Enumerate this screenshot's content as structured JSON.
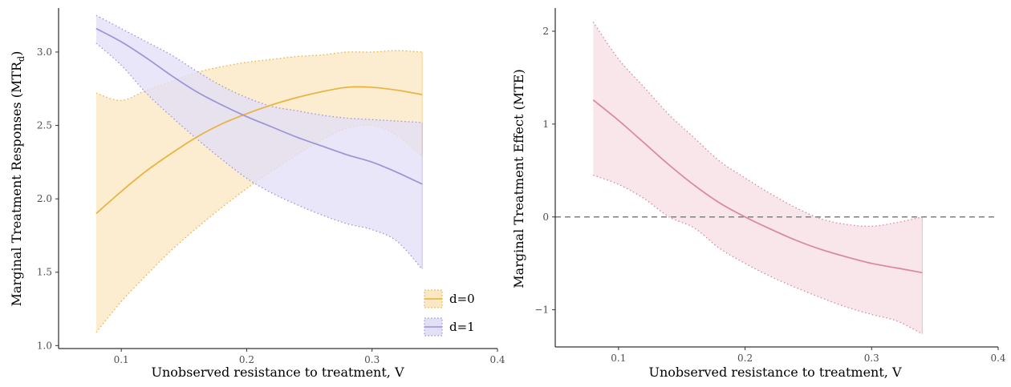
{
  "chart_data": [
    {
      "type": "line",
      "xlabel": "Unobserved resistance to treatment, V",
      "ylabel_main": "Marginal Treatment Responses  (MTR",
      "ylabel_sub": "d",
      "ylabel_close": ")",
      "xlim": [
        0.05,
        0.4
      ],
      "ylim": [
        0.98,
        3.3
      ],
      "x_ticks": [
        0.1,
        0.2,
        0.3,
        0.4
      ],
      "y_ticks": [
        1.0,
        1.5,
        2.0,
        2.5,
        3.0
      ],
      "x_tick_labels": [
        "0.1",
        "0.2",
        "0.3",
        "0.4"
      ],
      "y_tick_labels": [
        "1.0",
        "1.5",
        "2.0",
        "2.5",
        "3.0"
      ],
      "legend_position": "bottom-right",
      "series": [
        {
          "name": "d=0",
          "color": "#E8B23C",
          "fill": "#FBE7C4",
          "x": [
            0.08,
            0.1,
            0.12,
            0.14,
            0.16,
            0.18,
            0.2,
            0.22,
            0.24,
            0.26,
            0.28,
            0.3,
            0.32,
            0.34
          ],
          "values": [
            1.9,
            2.05,
            2.19,
            2.31,
            2.42,
            2.51,
            2.58,
            2.64,
            2.69,
            2.73,
            2.76,
            2.76,
            2.74,
            2.71
          ],
          "lower": [
            1.09,
            1.3,
            1.48,
            1.65,
            1.8,
            1.94,
            2.07,
            2.19,
            2.3,
            2.4,
            2.48,
            2.5,
            2.43,
            2.29
          ],
          "upper": [
            2.72,
            2.67,
            2.74,
            2.8,
            2.86,
            2.9,
            2.93,
            2.95,
            2.97,
            2.98,
            3.0,
            3.0,
            3.01,
            3.0
          ]
        },
        {
          "name": "d=1",
          "color": "#9B93D8",
          "fill": "#E2E0F6",
          "x": [
            0.08,
            0.1,
            0.12,
            0.14,
            0.16,
            0.18,
            0.2,
            0.22,
            0.24,
            0.26,
            0.28,
            0.3,
            0.32,
            0.34
          ],
          "values": [
            3.16,
            3.07,
            2.96,
            2.84,
            2.73,
            2.64,
            2.56,
            2.49,
            2.42,
            2.36,
            2.3,
            2.25,
            2.18,
            2.1
          ],
          "lower": [
            3.06,
            2.91,
            2.72,
            2.56,
            2.41,
            2.27,
            2.14,
            2.04,
            1.96,
            1.89,
            1.83,
            1.79,
            1.71,
            1.52
          ],
          "upper": [
            3.25,
            3.16,
            3.07,
            2.98,
            2.87,
            2.77,
            2.69,
            2.63,
            2.6,
            2.57,
            2.55,
            2.54,
            2.53,
            2.52
          ]
        }
      ]
    },
    {
      "type": "line",
      "xlabel": "Unobserved resistance to treatment, V",
      "ylabel": "Marginal Treatment Effect (MTE)",
      "xlim": [
        0.05,
        0.4
      ],
      "ylim": [
        -1.4,
        2.25
      ],
      "x_ticks": [
        0.1,
        0.2,
        0.3,
        0.4
      ],
      "y_ticks": [
        -1,
        0,
        1,
        2
      ],
      "x_tick_labels": [
        "0.1",
        "0.2",
        "0.3",
        "0.4"
      ],
      "y_tick_labels": [
        "−1",
        "0",
        "1",
        "2"
      ],
      "reference_line": 0,
      "series": [
        {
          "color": "#D9869E",
          "fill": "#F6E0E6",
          "x": [
            0.08,
            0.1,
            0.12,
            0.14,
            0.16,
            0.18,
            0.2,
            0.22,
            0.24,
            0.26,
            0.28,
            0.3,
            0.32,
            0.34
          ],
          "values": [
            1.26,
            1.04,
            0.8,
            0.56,
            0.34,
            0.15,
            0.0,
            -0.13,
            -0.25,
            -0.35,
            -0.43,
            -0.5,
            -0.55,
            -0.6
          ],
          "lower": [
            0.45,
            0.35,
            0.2,
            0.0,
            -0.12,
            -0.34,
            -0.5,
            -0.64,
            -0.76,
            -0.87,
            -0.97,
            -1.05,
            -1.12,
            -1.26
          ],
          "upper": [
            2.1,
            1.7,
            1.4,
            1.1,
            0.85,
            0.6,
            0.42,
            0.25,
            0.1,
            -0.02,
            -0.08,
            -0.1,
            -0.06,
            0.0
          ]
        }
      ]
    }
  ]
}
